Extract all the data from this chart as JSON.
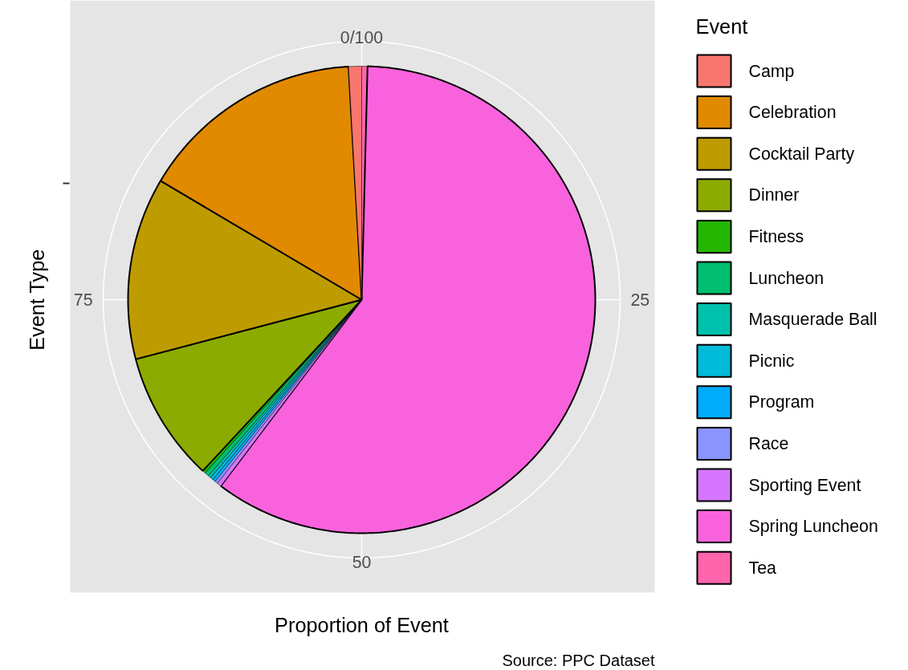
{
  "chart_data": {
    "type": "pie",
    "categories": [
      "Camp",
      "Celebration",
      "Cocktail Party",
      "Dinner",
      "Fitness",
      "Luncheon",
      "Masquerade Ball",
      "Picnic",
      "Program",
      "Race",
      "Sporting Event",
      "Spring Luncheon",
      "Tea"
    ],
    "values": [
      0.9,
      15.6,
      12.6,
      9.0,
      0.2,
      0.3,
      0.2,
      0.2,
      0.2,
      0.2,
      0.3,
      59.9,
      0.4
    ],
    "colors": [
      "#f8766d",
      "#e18a00",
      "#be9c00",
      "#8cab00",
      "#24b700",
      "#00be70",
      "#00c1ab",
      "#00bbda",
      "#00acfc",
      "#8b93ff",
      "#d575fe",
      "#f962dd",
      "#ff65ac"
    ],
    "xlabel": "Proportion of Event",
    "ylabel": "Event Type",
    "legend_title": "Event",
    "legend": "right",
    "grid": true,
    "annotations": [
      "0/100",
      "25",
      "50",
      "75",
      "Source: PPC Dataset"
    ]
  }
}
